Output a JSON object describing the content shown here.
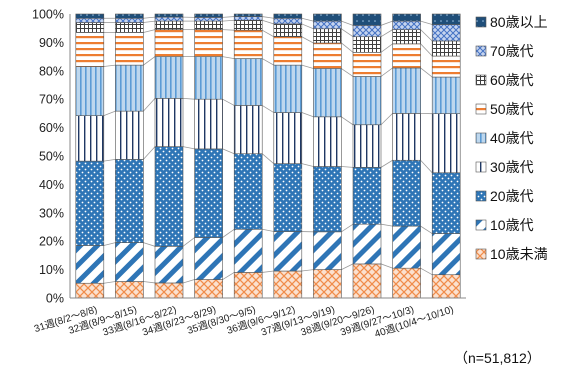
{
  "chart_data": {
    "type": "bar",
    "stacked": true,
    "normalized": true,
    "categories": [
      "31週(8/2～8/8)",
      "32週(8/9～8/15)",
      "33週(8/16～8/22)",
      "34週(8/23～8/29)",
      "35週(8/30～9/5)",
      "36週(9/6～9/12)",
      "37週(9/13～9/19)",
      "38週(9/20～9/26)",
      "39週(9/27～10/3)",
      "40週(10/4～10/10)"
    ],
    "yticks": [
      "0%",
      "10%",
      "20%",
      "30%",
      "40%",
      "50%",
      "60%",
      "70%",
      "80%",
      "90%",
      "100%"
    ],
    "ylim": [
      0,
      100
    ],
    "grid": false,
    "legend_position": "right",
    "series": [
      {
        "name": "10歳未満",
        "values": [
          5.2,
          5.8,
          5.3,
          6.5,
          9.0,
          9.5,
          10.0,
          12.0,
          10.5,
          8.2
        ]
      },
      {
        "name": "10歳代",
        "values": [
          13.3,
          13.7,
          12.9,
          14.8,
          15.2,
          13.9,
          13.3,
          14.0,
          14.8,
          14.5
        ]
      },
      {
        "name": "20歳代",
        "values": [
          29.7,
          29.3,
          35.1,
          31.2,
          26.6,
          23.9,
          23.0,
          20.0,
          23.2,
          21.4
        ]
      },
      {
        "name": "30歳代",
        "values": [
          16.0,
          17.0,
          17.0,
          17.5,
          17.0,
          18.0,
          17.5,
          15.0,
          16.5,
          20.8
        ]
      },
      {
        "name": "40歳代",
        "values": [
          17.3,
          16.2,
          14.7,
          15.0,
          16.5,
          16.7,
          17.0,
          17.0,
          16.0,
          12.9
        ]
      },
      {
        "name": "50歳代",
        "values": [
          12.0,
          11.5,
          9.5,
          9.5,
          10.0,
          10.0,
          9.0,
          8.5,
          8.5,
          7.4
        ]
      },
      {
        "name": "60歳代",
        "values": [
          3.5,
          3.5,
          3.0,
          3.0,
          3.5,
          4.5,
          5.0,
          5.5,
          5.0,
          5.3
        ]
      },
      {
        "name": "70歳代",
        "values": [
          1.5,
          1.5,
          1.4,
          1.3,
          1.3,
          2.0,
          2.7,
          4.0,
          3.0,
          5.8
        ]
      },
      {
        "name": "80歳以上",
        "values": [
          1.5,
          1.5,
          1.1,
          1.2,
          0.9,
          1.5,
          2.5,
          4.0,
          2.5,
          3.7
        ]
      }
    ]
  },
  "note": "（n=51,812）",
  "colors": {
    "10歳未満": "#f7a977",
    "10歳代": "#2e75b6",
    "20歳代": "#2e75b6",
    "30歳代": "#1f3864",
    "40歳代": "#5b9bd5",
    "50歳代": "#ed7d31",
    "60歳代": "#404040",
    "70歳代": "#4472c4",
    "80歳以上": "#1f4e79"
  }
}
